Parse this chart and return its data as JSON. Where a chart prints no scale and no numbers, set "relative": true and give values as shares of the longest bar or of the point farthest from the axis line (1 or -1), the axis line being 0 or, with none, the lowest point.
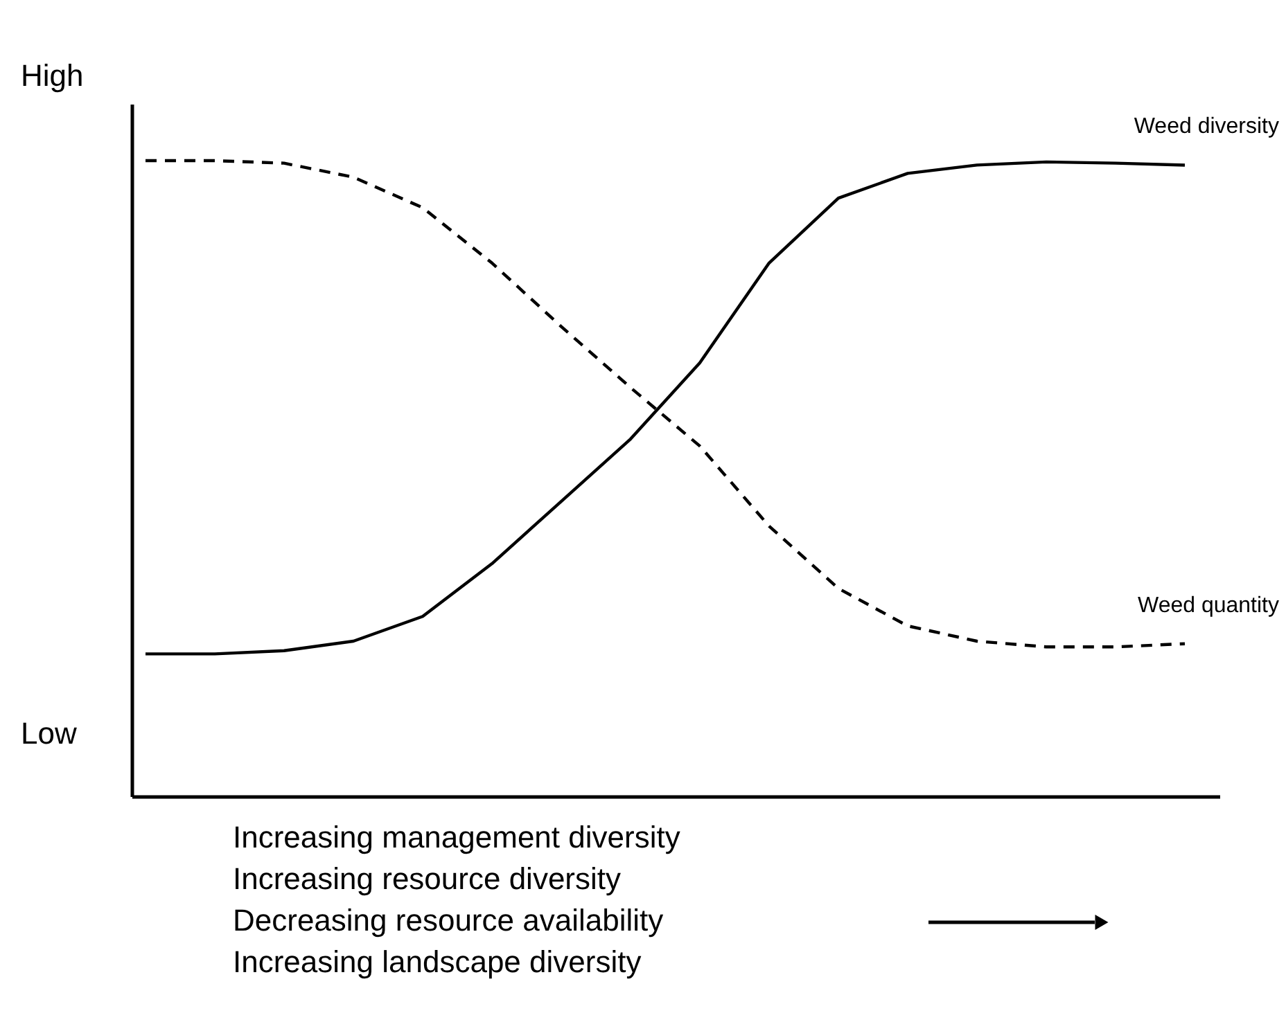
{
  "chart_data": {
    "type": "line",
    "relative": true,
    "legend": false,
    "grid": false,
    "marker": "none",
    "categories": [
      null,
      null,
      null,
      null,
      null,
      null,
      null,
      null,
      null,
      null,
      null,
      null,
      null,
      null,
      null,
      null
    ],
    "xlabel": "Increasing management diversity\nIncreasing resource diversity\nDecreasing resource availability\nIncreasing landscape diversity",
    "annotations": [
      "High",
      "Low"
    ],
    "series": [
      {
        "name": "Weed diversity",
        "color": "#000000",
        "line_style": "solid",
        "values": [
          0.224,
          0.224,
          0.229,
          0.244,
          0.283,
          0.366,
          0.464,
          0.562,
          0.682,
          0.839,
          0.941,
          0.98,
          0.993,
          0.998,
          0.996,
          0.993
        ]
      },
      {
        "name": "Weed quantity",
        "color": "#000000",
        "line_style": "dashed",
        "values": [
          1.0,
          1.0,
          0.996,
          0.974,
          0.926,
          0.839,
          0.739,
          0.643,
          0.551,
          0.425,
          0.327,
          0.268,
          0.244,
          0.235,
          0.235,
          0.24
        ]
      }
    ]
  }
}
